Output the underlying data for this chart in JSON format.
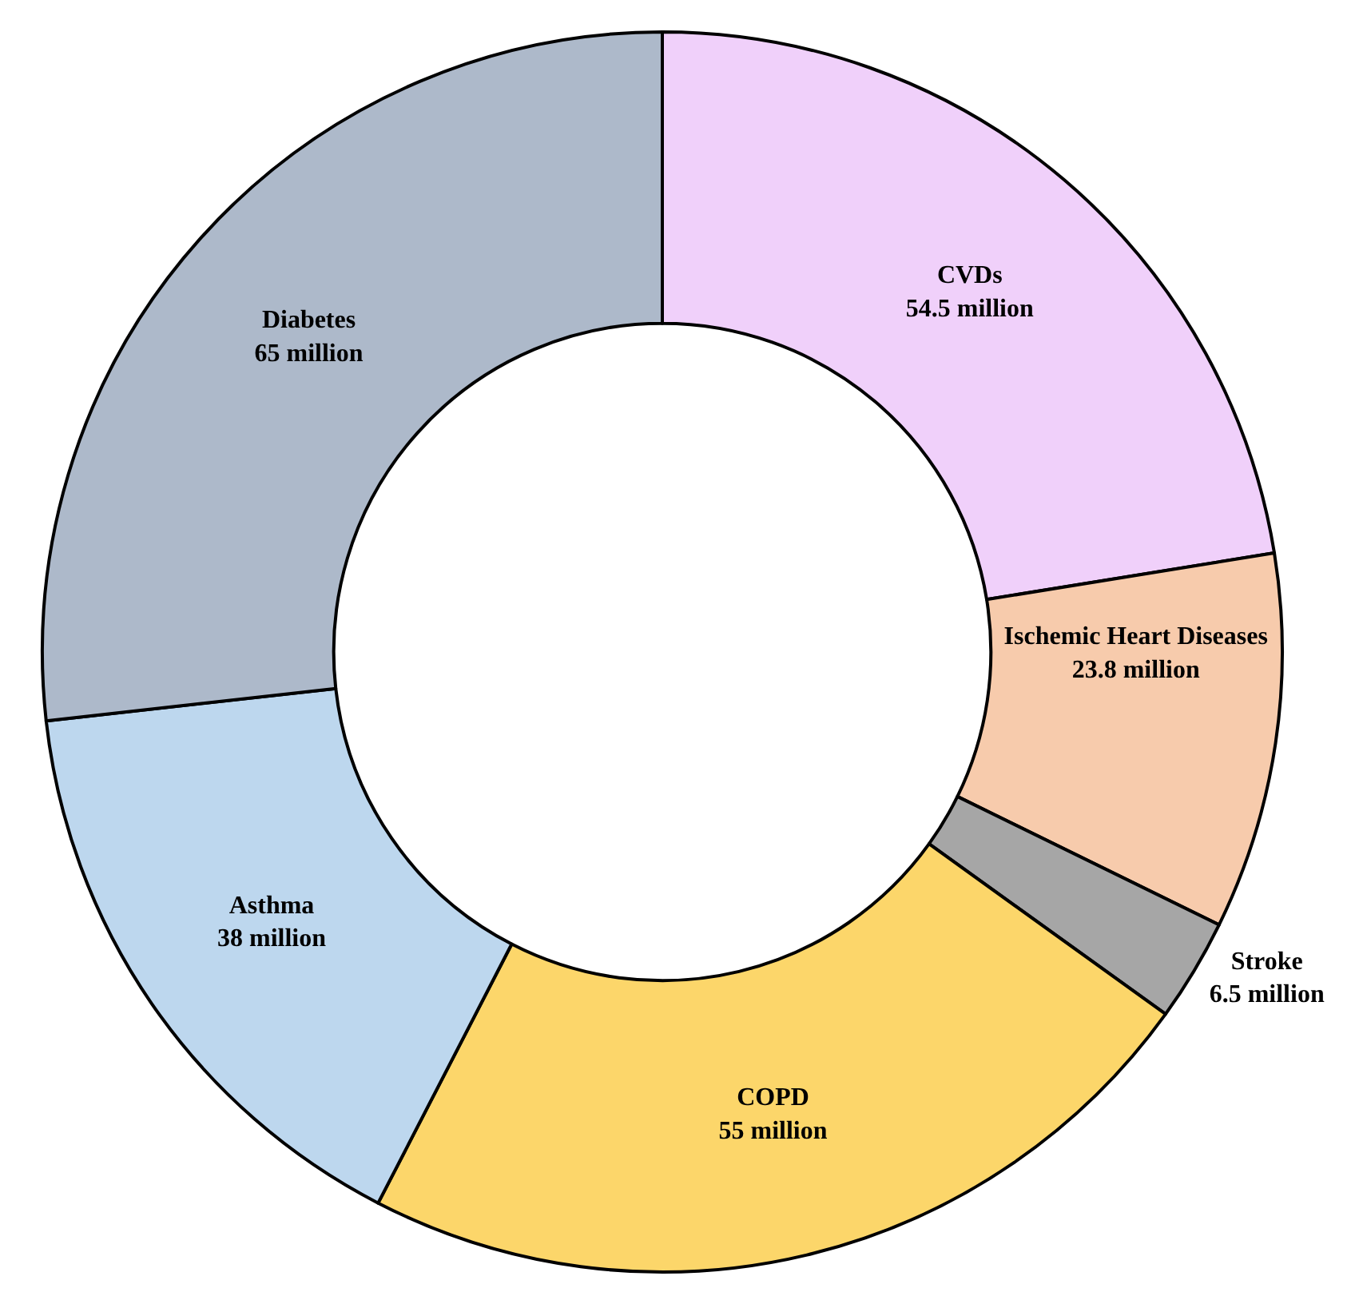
{
  "chart_data": {
    "type": "donut",
    "categories": [
      "CVDs",
      "Ischemic Heart Diseases",
      "Stroke",
      "COPD",
      "Asthma",
      "Diabetes"
    ],
    "values": [
      54.5,
      23.8,
      6.5,
      55,
      38,
      65
    ],
    "value_labels": [
      "54.5 million",
      "23.8 million",
      "6.5 million",
      "55 million",
      "38 million",
      "65 million"
    ],
    "colors": [
      "#f0d0fa",
      "#f7cbac",
      "#a6a6a6",
      "#fcd66a",
      "#bdd7ee",
      "#adb9ca"
    ],
    "legend": false
  }
}
